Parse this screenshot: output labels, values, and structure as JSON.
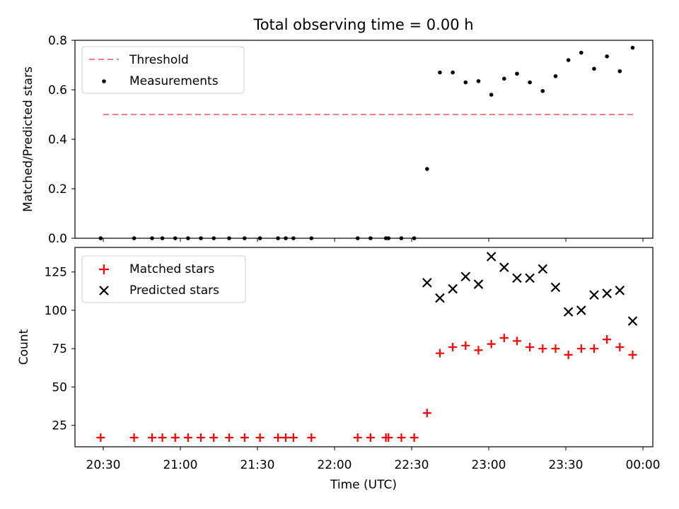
{
  "chart_data": [
    {
      "type": "scatter",
      "title": "Total observing time = 0.00 h",
      "ylabel": "Matched/Predicted stars",
      "xlabel": "",
      "ylim": [
        0,
        0.8
      ],
      "yticks": [
        0.0,
        0.2,
        0.4,
        0.6,
        0.8
      ],
      "ytick_labels": [
        "0.0",
        "0.2",
        "0.4",
        "0.6",
        "0.8"
      ],
      "legend": "top-left",
      "legend_entries": [
        "Threshold",
        "Measurements"
      ],
      "threshold": {
        "name": "Threshold",
        "value": 0.5,
        "x": [
          "20:30",
          "23:57"
        ],
        "color": "#f08080",
        "style": "dashed"
      },
      "series": [
        {
          "name": "Measurements",
          "marker": "dot",
          "color": "#000000",
          "x": [
            "20:29",
            "20:42",
            "20:49",
            "20:53",
            "20:58",
            "21:03",
            "21:08",
            "21:13",
            "21:19",
            "21:25",
            "21:31",
            "21:38",
            "21:41",
            "21:44",
            "21:51",
            "22:09",
            "22:14",
            "22:20",
            "22:21",
            "22:26",
            "22:31",
            "22:36",
            "22:41",
            "22:46",
            "22:51",
            "22:56",
            "23:01",
            "23:06",
            "23:11",
            "23:16",
            "23:21",
            "23:26",
            "23:31",
            "23:36",
            "23:41",
            "23:46",
            "23:51",
            "23:56"
          ],
          "values": [
            0,
            0,
            0,
            0,
            0,
            0,
            0,
            0,
            0,
            0,
            0,
            0,
            0,
            0,
            0,
            0,
            0,
            0,
            0,
            0,
            0,
            0.28,
            0.67,
            0.67,
            0.63,
            0.635,
            0.58,
            0.645,
            0.665,
            0.63,
            0.595,
            0.655,
            0.72,
            0.75,
            0.685,
            0.735,
            0.675,
            0.77
          ]
        }
      ]
    },
    {
      "type": "scatter",
      "title": "",
      "ylabel": "Count",
      "xlabel": "Time (UTC)",
      "ylim": [
        11,
        141
      ],
      "yticks": [
        25,
        50,
        75,
        100,
        125
      ],
      "ytick_labels": [
        "25",
        "50",
        "75",
        "100",
        "125"
      ],
      "xtick_labels": [
        "20:30",
        "21:00",
        "21:30",
        "22:00",
        "22:30",
        "23:00",
        "23:30",
        "00:00"
      ],
      "legend": "top-left",
      "legend_entries": [
        "Matched stars",
        "Predicted stars"
      ],
      "series": [
        {
          "name": "Matched stars",
          "marker": "plus",
          "color": "#ff0000",
          "x": [
            "20:29",
            "20:42",
            "20:49",
            "20:53",
            "20:58",
            "21:03",
            "21:08",
            "21:13",
            "21:19",
            "21:25",
            "21:31",
            "21:38",
            "21:41",
            "21:44",
            "21:51",
            "22:09",
            "22:14",
            "22:20",
            "22:21",
            "22:26",
            "22:31",
            "22:36",
            "22:41",
            "22:46",
            "22:51",
            "22:56",
            "23:01",
            "23:06",
            "23:11",
            "23:16",
            "23:21",
            "23:26",
            "23:31",
            "23:36",
            "23:41",
            "23:46",
            "23:51",
            "23:56"
          ],
          "values": [
            17,
            17,
            17,
            17,
            17,
            17,
            17,
            17,
            17,
            17,
            17,
            17,
            17,
            17,
            17,
            17,
            17,
            17,
            17,
            17,
            17,
            33,
            72,
            76,
            77,
            74,
            78,
            82,
            80,
            76,
            75,
            75,
            71,
            75,
            75,
            81,
            76,
            71
          ]
        },
        {
          "name": "Predicted stars",
          "marker": "x",
          "color": "#000000",
          "x": [
            "22:36",
            "22:41",
            "22:46",
            "22:51",
            "22:56",
            "23:01",
            "23:06",
            "23:11",
            "23:16",
            "23:21",
            "23:26",
            "23:31",
            "23:36",
            "23:41",
            "23:46",
            "23:51",
            "23:56"
          ],
          "values": [
            118,
            108,
            114,
            122,
            117,
            135,
            128,
            121,
            121,
            127,
            115,
            99,
            100,
            110,
            111,
            113,
            93
          ]
        }
      ]
    }
  ]
}
